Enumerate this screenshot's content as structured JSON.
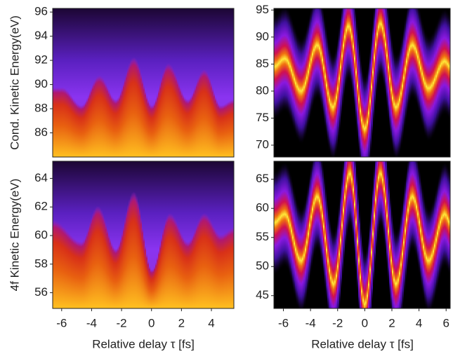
{
  "chart_data": [
    {
      "type": "heatmap",
      "band": false,
      "ylabel": "Cond. Kinetic Energy(eV)",
      "x": [
        -6.6,
        -6,
        -4.7,
        -3.5,
        -2.4,
        -1.2,
        0,
        1.1,
        2.4,
        3.5,
        4.6,
        5.5
      ],
      "values": [
        88.5,
        88.5,
        87,
        89.5,
        87.5,
        91,
        87,
        90.5,
        87.5,
        90,
        87,
        87.5
      ],
      "xlim": [
        -6.6,
        5.5
      ],
      "ylim": [
        84,
        96.3
      ],
      "yticks": [
        86,
        88,
        90,
        92,
        94,
        96
      ]
    },
    {
      "type": "heatmap",
      "band": true,
      "x": [
        -6.7,
        -5.9,
        -4.7,
        -3.5,
        -2.35,
        -1.2,
        0,
        1.15,
        2.3,
        3.5,
        4.7,
        5.9,
        6.3
      ],
      "values": [
        84.5,
        86,
        80,
        88.5,
        77,
        92,
        73,
        92.5,
        77,
        88.5,
        80.5,
        85.5,
        84.5
      ],
      "xlim": [
        -6.7,
        6.3
      ],
      "ylim": [
        67.8,
        95.3
      ],
      "yticks": [
        70,
        75,
        80,
        85,
        90,
        95
      ]
    },
    {
      "type": "heatmap",
      "band": false,
      "ylabel": "4f Kinetic Energy(eV)",
      "xlabel": "Relative delay τ [fs]",
      "x": [
        -6.6,
        -4.7,
        -3.6,
        -2.4,
        -1.2,
        0,
        1.2,
        2.4,
        3.5,
        4.6,
        5.5
      ],
      "values": [
        60,
        58.5,
        61,
        58,
        62,
        56.5,
        60.5,
        58.5,
        60.5,
        59,
        59.5
      ],
      "xlim": [
        -6.6,
        5.5
      ],
      "ylim": [
        54.9,
        65.2
      ],
      "xticks": [
        -6,
        -4,
        -2,
        0,
        2,
        4
      ],
      "yticks": [
        56,
        58,
        60,
        62,
        64
      ]
    },
    {
      "type": "heatmap",
      "band": true,
      "xlabel": "Relative delay τ [fs]",
      "x": [
        -6.7,
        -5.9,
        -4.7,
        -3.5,
        -2.3,
        -1.1,
        0,
        1.15,
        2.3,
        3.5,
        4.7,
        5.9,
        6.3
      ],
      "values": [
        57.5,
        59,
        51,
        62,
        47,
        66,
        43.5,
        66,
        47,
        62,
        51,
        59,
        57.5
      ],
      "xlim": [
        -6.7,
        6.3
      ],
      "ylim": [
        42.8,
        68.1
      ],
      "xticks": [
        -6,
        -4,
        -2,
        0,
        2,
        4,
        6
      ],
      "yticks": [
        45,
        50,
        55,
        60,
        65
      ]
    }
  ]
}
